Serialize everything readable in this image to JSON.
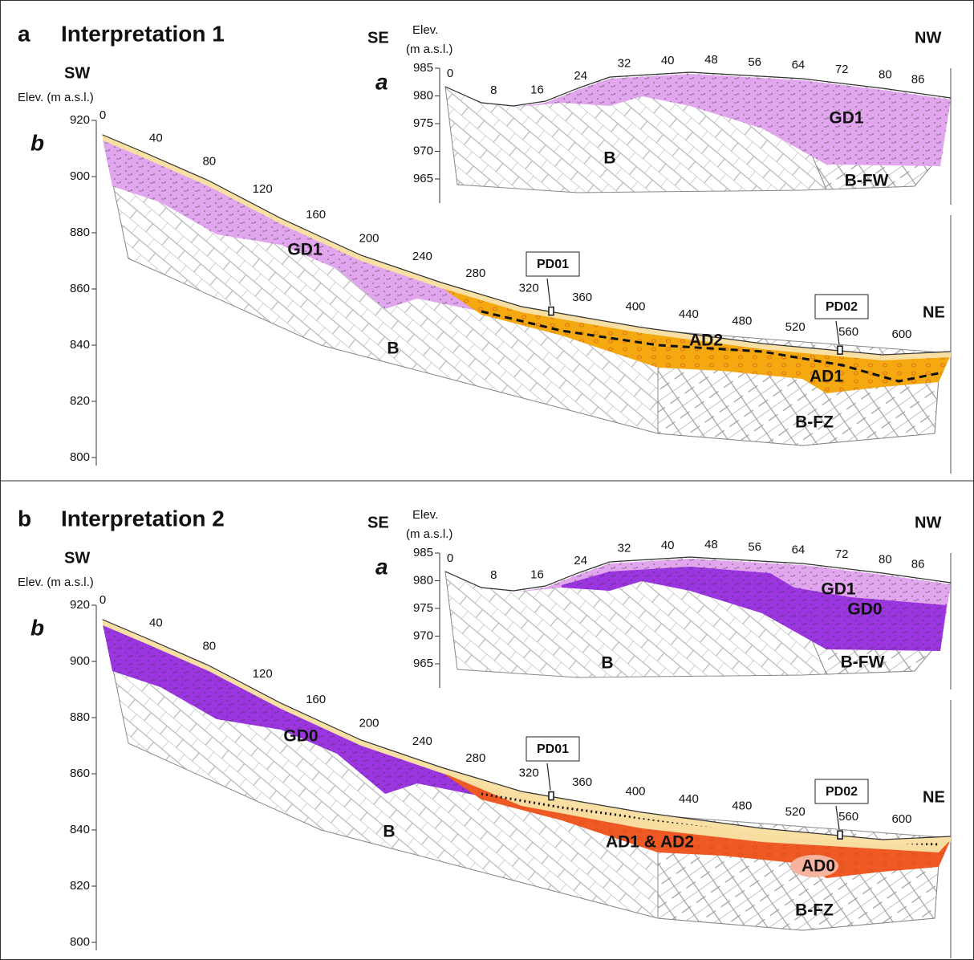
{
  "panels": [
    {
      "letter": "a",
      "title": "Interpretation 1",
      "inset": {
        "label": "a",
        "left_dir": "SE",
        "right_dir": "NW",
        "axis_title": [
          "Elev.",
          "(m a.s.l.)"
        ],
        "elev_ticks": [
          985,
          980,
          975,
          970,
          965
        ],
        "distance_ticks": [
          0,
          8,
          16,
          24,
          32,
          40,
          48,
          56,
          64,
          72,
          80,
          86
        ],
        "units": [
          "GD1",
          "B",
          "B-FW"
        ]
      },
      "profile": {
        "label": "b",
        "left_dir": "SW",
        "right_dir": "NE",
        "axis_title": "Elev. (m a.s.l.)",
        "elev_ticks": [
          920,
          900,
          880,
          860,
          840,
          820,
          800
        ],
        "distance_ticks": [
          0,
          40,
          80,
          120,
          160,
          200,
          240,
          280,
          320,
          360,
          400,
          440,
          480,
          520,
          560,
          600
        ],
        "units": [
          "GD1",
          "B",
          "AD2",
          "AD1",
          "B-FZ"
        ],
        "boreholes": [
          "PD01",
          "PD02"
        ]
      }
    },
    {
      "letter": "b",
      "title": "Interpretation 2",
      "inset": {
        "label": "a",
        "left_dir": "SE",
        "right_dir": "NW",
        "axis_title": [
          "Elev.",
          "(m a.s.l.)"
        ],
        "elev_ticks": [
          985,
          980,
          975,
          970,
          965
        ],
        "distance_ticks": [
          0,
          8,
          16,
          24,
          32,
          40,
          48,
          56,
          64,
          72,
          80,
          86
        ],
        "units": [
          "GD1",
          "GD0",
          "B",
          "B-FW"
        ]
      },
      "profile": {
        "label": "b",
        "left_dir": "SW",
        "right_dir": "NE",
        "axis_title": "Elev. (m a.s.l.)",
        "elev_ticks": [
          920,
          900,
          880,
          860,
          840,
          820,
          800
        ],
        "distance_ticks": [
          0,
          40,
          80,
          120,
          160,
          200,
          240,
          280,
          320,
          360,
          400,
          440,
          480,
          520,
          560,
          600
        ],
        "units": [
          "GD0",
          "B",
          "AD1 & AD2",
          "AD0",
          "B-FZ"
        ],
        "boreholes": [
          "PD01",
          "PD02"
        ]
      }
    }
  ]
}
